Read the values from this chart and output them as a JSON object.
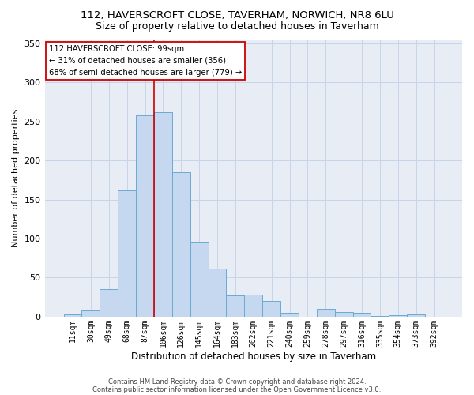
{
  "title1": "112, HAVERSCROFT CLOSE, TAVERHAM, NORWICH, NR8 6LU",
  "title2": "Size of property relative to detached houses in Taverham",
  "xlabel": "Distribution of detached houses by size in Taverham",
  "ylabel": "Number of detached properties",
  "categories": [
    "11sqm",
    "30sqm",
    "49sqm",
    "68sqm",
    "87sqm",
    "106sqm",
    "126sqm",
    "145sqm",
    "164sqm",
    "183sqm",
    "202sqm",
    "221sqm",
    "240sqm",
    "259sqm",
    "278sqm",
    "297sqm",
    "316sqm",
    "335sqm",
    "354sqm",
    "373sqm",
    "392sqm"
  ],
  "values": [
    3,
    8,
    35,
    162,
    258,
    262,
    185,
    96,
    62,
    27,
    28,
    20,
    5,
    0,
    10,
    6,
    5,
    1,
    2,
    3,
    0
  ],
  "bar_color": "#c5d8f0",
  "bar_edge_color": "#6aaad4",
  "vline_color": "#cc0000",
  "vline_index": 4.5,
  "annotation_text": "112 HAVERSCROFT CLOSE: 99sqm\n← 31% of detached houses are smaller (356)\n68% of semi-detached houses are larger (779) →",
  "annotation_box_color": "#ffffff",
  "annotation_box_edge": "#cc0000",
  "footer1": "Contains HM Land Registry data © Crown copyright and database right 2024.",
  "footer2": "Contains public sector information licensed under the Open Government Licence v3.0.",
  "ylim": [
    0,
    355
  ],
  "yticks": [
    0,
    50,
    100,
    150,
    200,
    250,
    300,
    350
  ],
  "grid_color": "#c8d4e8",
  "bg_color": "#e8edf5",
  "title1_fontsize": 9.5,
  "title2_fontsize": 9,
  "ylabel_fontsize": 8,
  "xlabel_fontsize": 8.5,
  "tick_fontsize": 7,
  "footer_fontsize": 6
}
